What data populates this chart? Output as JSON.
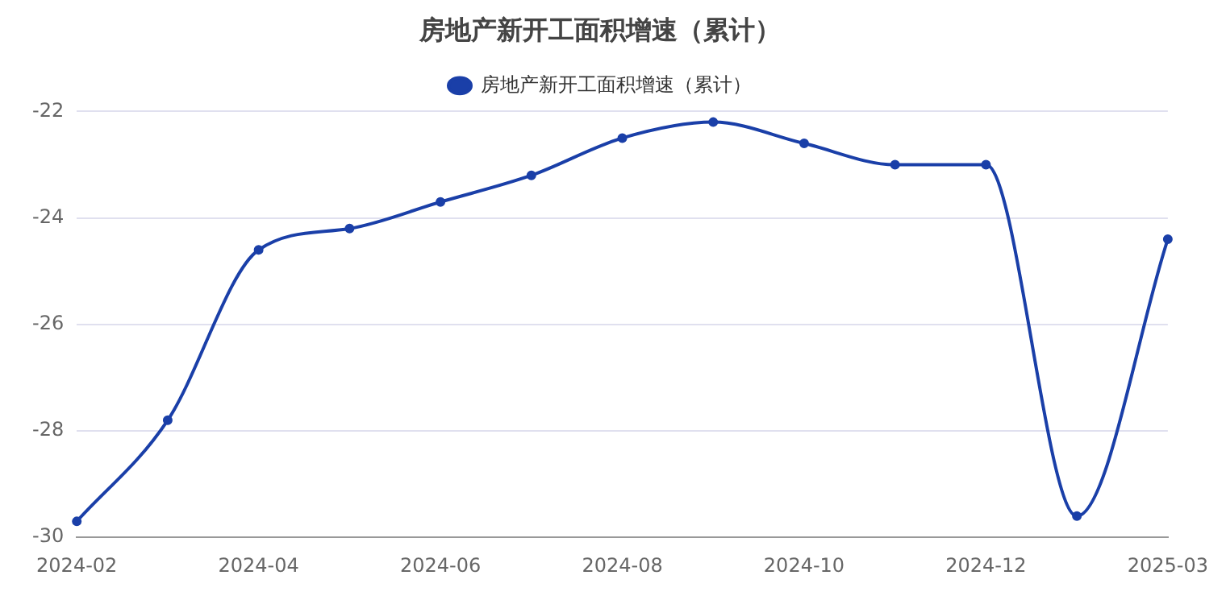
{
  "chart_data": {
    "type": "line",
    "title": "房地产新开工面积增速（累计）",
    "categories": [
      "2024-02",
      null,
      "2024-04",
      null,
      "2024-06",
      null,
      "2024-08",
      null,
      "2024-10",
      null,
      "2024-12",
      null,
      "2025-03"
    ],
    "series": [
      {
        "name": "房地产新开工面积增速（累计）",
        "color": "#1a3fa8",
        "values": [
          -29.7,
          -27.8,
          -24.6,
          -24.2,
          -23.7,
          -23.2,
          -22.5,
          -22.2,
          -22.6,
          -23.0,
          -23.0,
          -29.6,
          -24.4
        ]
      }
    ],
    "ylim": [
      -30,
      -22
    ],
    "yticks": [
      -30,
      -28,
      -26,
      -24,
      -22
    ],
    "grid": "y",
    "legend": "top",
    "marker": "circle",
    "line_style": "solid"
  }
}
